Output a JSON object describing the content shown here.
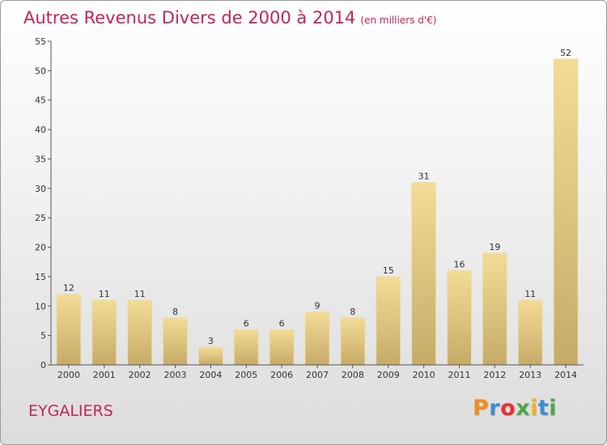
{
  "chart_data": {
    "type": "bar",
    "title": "Autres Revenus Divers de 2000 à 2014",
    "subtitle": "(en milliers d'€)",
    "xlabel": "",
    "ylabel": "",
    "categories": [
      "2000",
      "2001",
      "2002",
      "2003",
      "2004",
      "2005",
      "2006",
      "2007",
      "2008",
      "2009",
      "2010",
      "2011",
      "2012",
      "2013",
      "2014"
    ],
    "values": [
      12,
      11,
      11,
      8,
      3,
      6,
      6,
      9,
      8,
      15,
      31,
      16,
      19,
      11,
      52
    ],
    "ylim": [
      0,
      55
    ],
    "yticks": [
      0,
      5,
      10,
      15,
      20,
      25,
      30,
      35,
      40,
      45,
      50,
      55
    ],
    "grid": false,
    "legend": "none",
    "bar_color_top": "#f3dc95",
    "bar_color_bottom": "#c6ab68"
  },
  "footer": {
    "region_name": "EYGALIERS",
    "logo_letters": [
      "P",
      "r",
      "o",
      "x",
      "i",
      "t",
      "i"
    ],
    "logo_colors": [
      "#f28b1e",
      "#3a8fd1",
      "#e8312f",
      "#4aa84a",
      "#f2b01e",
      "#3a8fd1",
      "#4aa84a"
    ]
  }
}
